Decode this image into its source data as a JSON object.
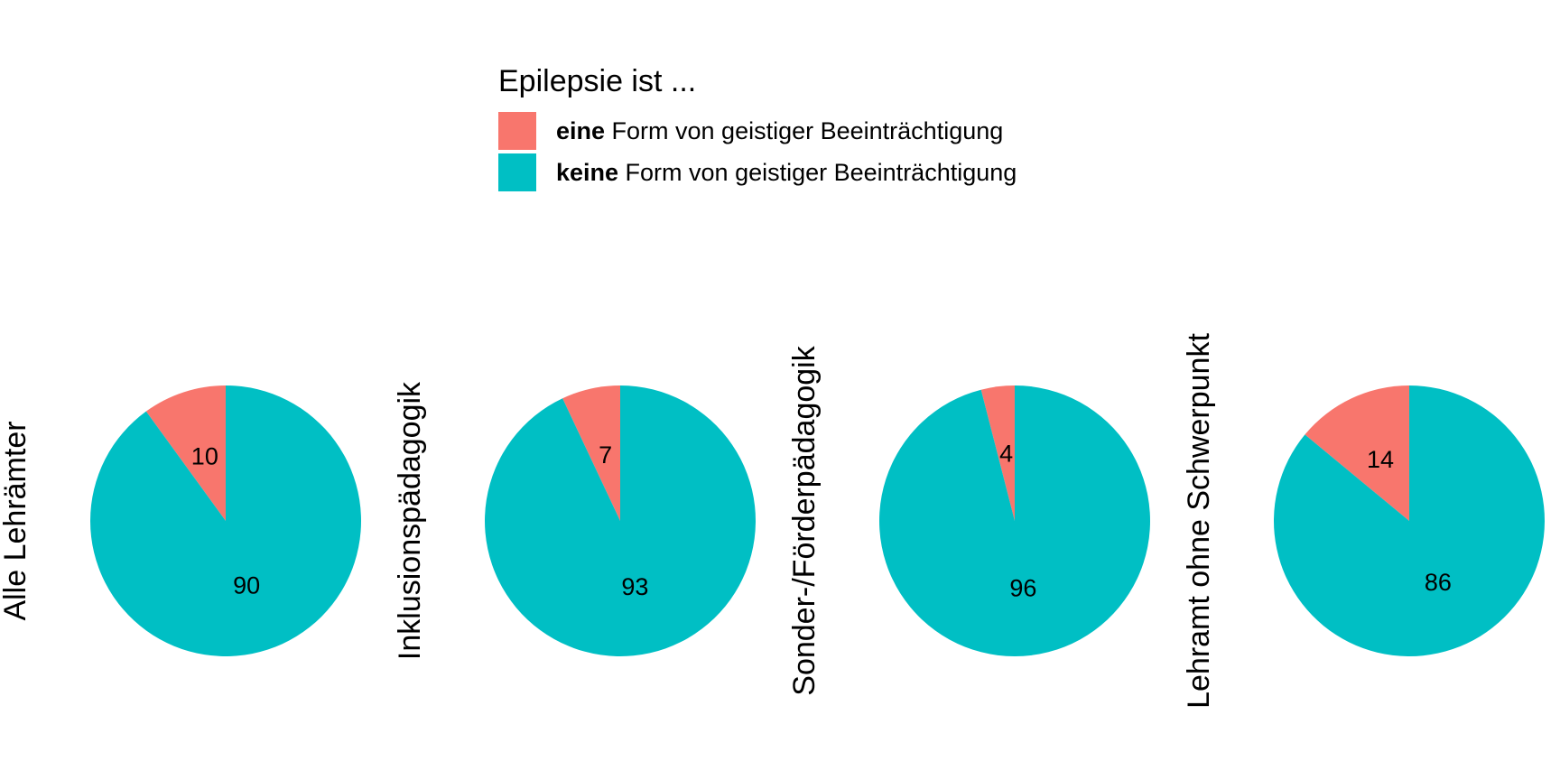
{
  "chart_data": {
    "type": "pie",
    "legend": {
      "title": "Epilepsie ist ...",
      "placement": "top",
      "items": [
        {
          "bold": "eine",
          "rest": " Form von geistiger Beeinträchtigung",
          "color": "#F8766D"
        },
        {
          "bold": "keine",
          "rest": " Form von geistiger Beeinträchtigung",
          "color": "#00BFC4"
        }
      ]
    },
    "series_order": [
      "eine",
      "keine"
    ],
    "panels": [
      {
        "label": "Alle Lehrämter",
        "values": [
          10,
          90
        ]
      },
      {
        "label": "Inklusionspädagogik",
        "values": [
          7,
          93
        ]
      },
      {
        "label": "Sonder-/Förderpädagogik",
        "values": [
          4,
          96
        ]
      },
      {
        "label": "Lehramt ohne Schwerpunkt",
        "values": [
          14,
          86
        ]
      }
    ]
  }
}
